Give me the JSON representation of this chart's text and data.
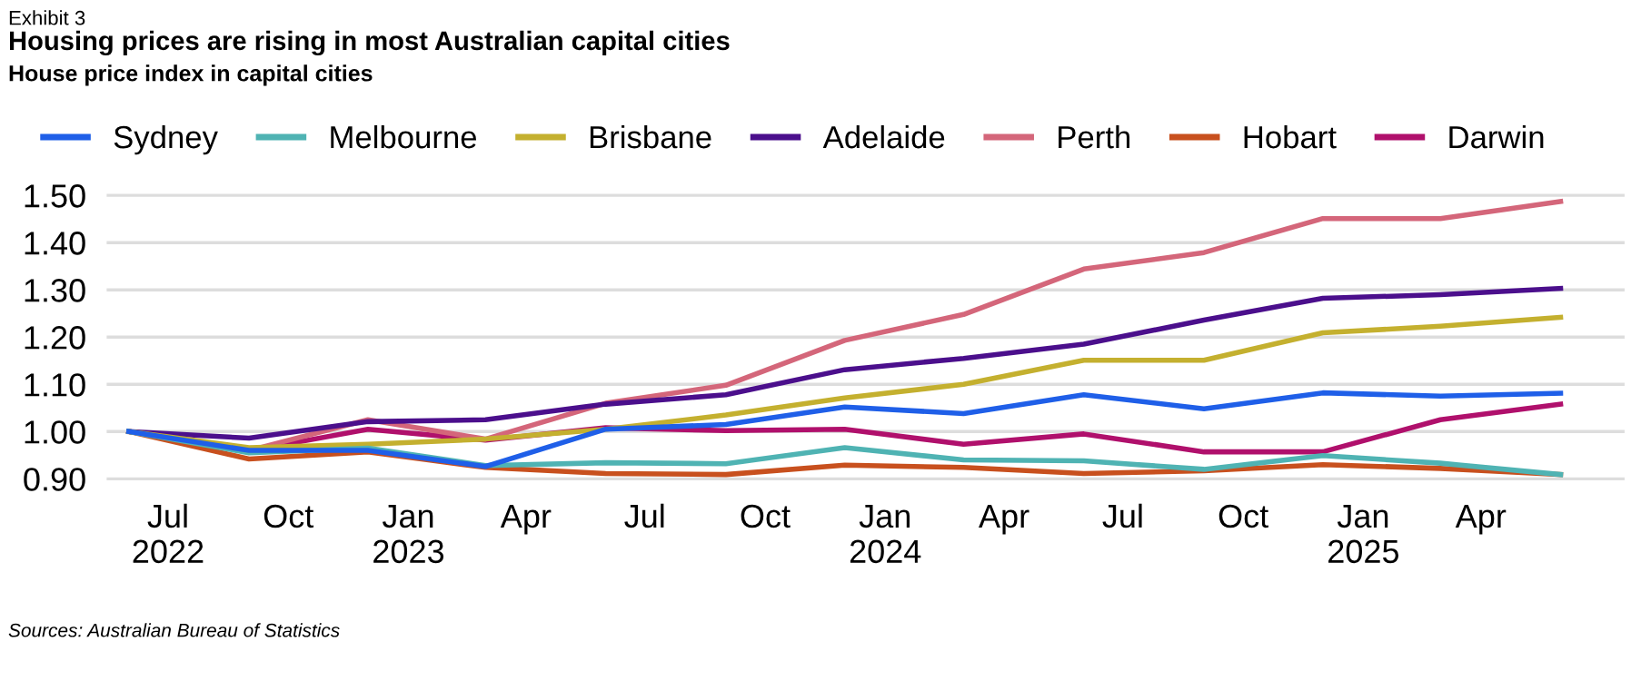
{
  "chart_data": {
    "type": "line",
    "title": "Housing prices are rising in most Australian capital cities",
    "subtitle": "House price index in capital cities",
    "annotations": [
      "Exhibit 3",
      "Sources: Australian Bureau of Statistics"
    ],
    "x": [
      "2022-06",
      "2022-09",
      "2022-12",
      "2023-03",
      "2023-06",
      "2023-09",
      "2023-12",
      "2024-03",
      "2024-06",
      "2024-09",
      "2024-12",
      "2025-03",
      "2025-06"
    ],
    "series": [
      {
        "name": "Sydney",
        "color": "#1f5fe8",
        "values": [
          1.0,
          0.96,
          0.96,
          0.926,
          1.005,
          1.015,
          1.052,
          1.038,
          1.078,
          1.048,
          1.082,
          1.075,
          1.081
        ]
      },
      {
        "name": "Melbourne",
        "color": "#4fb3b3",
        "values": [
          1.0,
          0.955,
          0.965,
          0.928,
          0.934,
          0.932,
          0.966,
          0.94,
          0.938,
          0.92,
          0.949,
          0.933,
          0.909
        ]
      },
      {
        "name": "Brisbane",
        "color": "#c4b02f",
        "values": [
          1.0,
          0.966,
          0.973,
          0.984,
          1.005,
          1.035,
          1.071,
          1.1,
          1.151,
          1.151,
          1.209,
          1.223,
          1.242
        ]
      },
      {
        "name": "Adelaide",
        "color": "#4b0f8c",
        "values": [
          1.0,
          0.986,
          1.021,
          1.025,
          1.058,
          1.078,
          1.131,
          1.155,
          1.185,
          1.236,
          1.282,
          1.29,
          1.303
        ]
      },
      {
        "name": "Perth",
        "color": "#d4667a",
        "values": [
          1.0,
          0.96,
          1.025,
          0.984,
          1.06,
          1.098,
          1.193,
          1.248,
          1.344,
          1.379,
          1.451,
          1.451,
          1.487
        ]
      },
      {
        "name": "Hobart",
        "color": "#c8501e",
        "values": [
          1.0,
          0.942,
          0.957,
          0.924,
          0.911,
          0.909,
          0.929,
          0.924,
          0.911,
          0.917,
          0.93,
          0.922,
          0.909
        ]
      },
      {
        "name": "Darwin",
        "color": "#b0106c",
        "values": [
          1.0,
          0.959,
          1.005,
          0.982,
          1.008,
          1.002,
          1.005,
          0.973,
          0.995,
          0.957,
          0.957,
          1.025,
          1.058
        ]
      }
    ],
    "xlim": [
      "2022-05-15",
      "2025-07-20"
    ],
    "xticks": [
      {
        "value": "2022-07",
        "label": "Jul\n2022"
      },
      {
        "value": "2022-10",
        "label": "Oct"
      },
      {
        "value": "2023-01",
        "label": "Jan\n2023"
      },
      {
        "value": "2023-04",
        "label": "Apr"
      },
      {
        "value": "2023-07",
        "label": "Jul"
      },
      {
        "value": "2023-10",
        "label": "Oct"
      },
      {
        "value": "2024-01",
        "label": "Jan\n2024"
      },
      {
        "value": "2024-04",
        "label": "Apr"
      },
      {
        "value": "2024-07",
        "label": "Jul"
      },
      {
        "value": "2024-10",
        "label": "Oct"
      },
      {
        "value": "2025-01",
        "label": "Jan\n2025"
      },
      {
        "value": "2025-04",
        "label": "Apr"
      }
    ],
    "ylim": [
      0.89,
      1.51
    ],
    "yticks": [
      {
        "value": 0.9,
        "label": "0.90"
      },
      {
        "value": 1.0,
        "label": "1.00"
      },
      {
        "value": 1.1,
        "label": "1.10"
      },
      {
        "value": 1.2,
        "label": "1.20"
      },
      {
        "value": 1.3,
        "label": "1.30"
      },
      {
        "value": 1.4,
        "label": "1.40"
      },
      {
        "value": 1.5,
        "label": "1.50"
      }
    ],
    "grid": "y",
    "legend": "top",
    "marker": "none",
    "line_style": "solid"
  }
}
